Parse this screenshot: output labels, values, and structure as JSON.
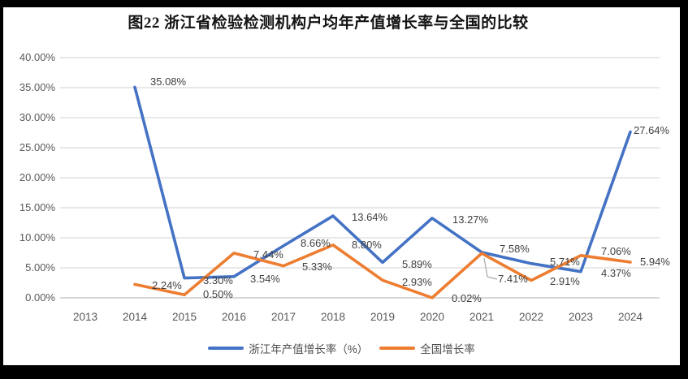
{
  "title": "图22 浙江省检验检测机构户均年产值增长率与全国的比较",
  "colors": {
    "zhejiang": "#4472C4",
    "national": "#ED7D31",
    "gridline": "#D9D9D9",
    "axis_line": "#BFBFBF",
    "leader": "#A6A6A6",
    "tick_text": "#595959",
    "label_text": "#3F3F3F",
    "frame": "#000000",
    "background": "#FFFFFF"
  },
  "chart_data": {
    "type": "line",
    "title": "图22 浙江省检验检测机构户均年产值增长率与全国的比较",
    "categories": [
      "2013",
      "2014",
      "2015",
      "2016",
      "2017",
      "2018",
      "2019",
      "2020",
      "2021",
      "2022",
      "2023",
      "2024"
    ],
    "series": [
      {
        "name": "浙江年产值增长率（%）",
        "color_key": "zhejiang",
        "values": [
          null,
          35.08,
          3.3,
          3.54,
          8.66,
          13.64,
          5.89,
          13.27,
          7.58,
          5.71,
          4.37,
          27.64
        ],
        "labels": [
          "",
          "35.08%",
          "3.30%",
          "3.54%",
          "8.66%",
          "13.64%",
          "5.89%",
          "13.27%",
          "7.58%",
          "5.71%",
          "4.37%",
          "27.64%"
        ]
      },
      {
        "name": "全国增长率",
        "color_key": "national",
        "values": [
          null,
          2.24,
          0.5,
          7.44,
          5.33,
          8.8,
          2.93,
          0.02,
          7.41,
          2.91,
          7.06,
          5.94
        ],
        "labels": [
          "",
          "2.24%",
          "0.50%",
          "7.44%",
          "5.33%",
          "8.80%",
          "2.93%",
          "0.02%",
          "7.41%",
          "2.91%",
          "7.06%",
          "5.94%"
        ]
      }
    ],
    "y_ticks": [
      "40.00%",
      "35.00%",
      "30.00%",
      "25.00%",
      "20.00%",
      "15.00%",
      "10.00%",
      "5.00%",
      "0.00%"
    ],
    "ylim": [
      0,
      40
    ],
    "y_tick_step": 5,
    "grid": true,
    "data_labels": true,
    "legend_position": "bottom",
    "xlabel": "",
    "ylabel": ""
  },
  "legend": {
    "items": [
      {
        "label": "浙江年产值增长率（%）"
      },
      {
        "label": "全国增长率"
      }
    ]
  }
}
